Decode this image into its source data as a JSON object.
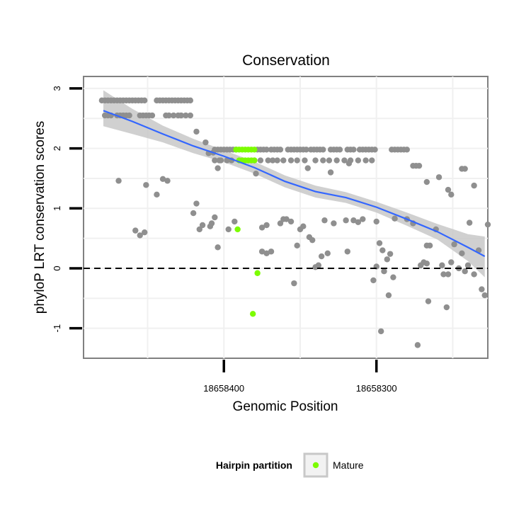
{
  "chart_data": {
    "type": "scatter",
    "title": "Conservation",
    "xlabel": "Genomic Position",
    "ylabel": "phyloP LRT conservation scores",
    "x_reversed": true,
    "xlim": [
      18658492,
      18658227
    ],
    "ylim": [
      -1.5,
      3.2
    ],
    "x_ticks": [
      18658400,
      18658300
    ],
    "x_tick_labels": [
      "18658400",
      "18658300"
    ],
    "y_ticks": [
      3,
      2,
      1,
      0,
      -1
    ],
    "y_tick_labels": [
      "3",
      "2",
      "1",
      "0",
      "-1"
    ],
    "reference_line": {
      "y": 0,
      "style": "dashed"
    },
    "grid": true,
    "legend": {
      "title": "Hairpin partition",
      "position": "bottom",
      "entries": [
        {
          "label": "Mature",
          "color": "#7cfc00"
        }
      ]
    },
    "colors": {
      "other": "#8f8f8f",
      "mature": "#7cfc00",
      "smooth": "#3366ff",
      "band": "#c8c8c8"
    },
    "series": [
      {
        "name": "",
        "color": "#8f8f8f",
        "points": [
          [
            18658480,
            2.8
          ],
          [
            18658478,
            2.8
          ],
          [
            18658476,
            2.8
          ],
          [
            18658474,
            2.8
          ],
          [
            18658472,
            2.8
          ],
          [
            18658470,
            2.8
          ],
          [
            18658468,
            2.8
          ],
          [
            18658466,
            2.8
          ],
          [
            18658464,
            2.8
          ],
          [
            18658462,
            2.8
          ],
          [
            18658460,
            2.8
          ],
          [
            18658458,
            2.8
          ],
          [
            18658456,
            2.8
          ],
          [
            18658454,
            2.8
          ],
          [
            18658452,
            2.8
          ],
          [
            18658478,
            2.55
          ],
          [
            18658476,
            2.55
          ],
          [
            18658474,
            2.55
          ],
          [
            18658470,
            2.55
          ],
          [
            18658468,
            2.55
          ],
          [
            18658466,
            2.55
          ],
          [
            18658464,
            2.55
          ],
          [
            18658462,
            2.55
          ],
          [
            18658455,
            2.55
          ],
          [
            18658453,
            2.55
          ],
          [
            18658451,
            2.55
          ],
          [
            18658449,
            2.55
          ],
          [
            18658447,
            2.55
          ],
          [
            18658444,
            2.8
          ],
          [
            18658442,
            2.8
          ],
          [
            18658440,
            2.8
          ],
          [
            18658438,
            2.8
          ],
          [
            18658436,
            2.8
          ],
          [
            18658434,
            2.8
          ],
          [
            18658432,
            2.8
          ],
          [
            18658430,
            2.8
          ],
          [
            18658428,
            2.8
          ],
          [
            18658426,
            2.8
          ],
          [
            18658424,
            2.8
          ],
          [
            18658422,
            2.8
          ],
          [
            18658438,
            2.55
          ],
          [
            18658436,
            2.55
          ],
          [
            18658433,
            2.55
          ],
          [
            18658430,
            2.55
          ],
          [
            18658428,
            2.55
          ],
          [
            18658425,
            2.55
          ],
          [
            18658422,
            2.55
          ],
          [
            18658418,
            2.28
          ],
          [
            18658412,
            2.1
          ],
          [
            18658410,
            1.92
          ],
          [
            18658407,
            1.93
          ],
          [
            18658406,
            1.98
          ],
          [
            18658404,
            1.98
          ],
          [
            18658402,
            1.98
          ],
          [
            18658400,
            1.98
          ],
          [
            18658398,
            1.98
          ],
          [
            18658396,
            1.98
          ],
          [
            18658394,
            1.98
          ],
          [
            18658392,
            1.98
          ],
          [
            18658378,
            1.98
          ],
          [
            18658376,
            1.98
          ],
          [
            18658374,
            1.98
          ],
          [
            18658372,
            1.98
          ],
          [
            18658369,
            1.98
          ],
          [
            18658367,
            1.98
          ],
          [
            18658365,
            1.98
          ],
          [
            18658363,
            1.98
          ],
          [
            18658358,
            1.98
          ],
          [
            18658356,
            1.98
          ],
          [
            18658354,
            1.98
          ],
          [
            18658352,
            1.98
          ],
          [
            18658350,
            1.98
          ],
          [
            18658348,
            1.98
          ],
          [
            18658346,
            1.98
          ],
          [
            18658343,
            1.98
          ],
          [
            18658341,
            1.98
          ],
          [
            18658339,
            1.98
          ],
          [
            18658337,
            1.98
          ],
          [
            18658335,
            1.98
          ],
          [
            18658330,
            1.98
          ],
          [
            18658328,
            1.98
          ],
          [
            18658326,
            1.98
          ],
          [
            18658324,
            1.98
          ],
          [
            18658319,
            1.98
          ],
          [
            18658317,
            1.98
          ],
          [
            18658315,
            1.98
          ],
          [
            18658311,
            1.98
          ],
          [
            18658309,
            1.98
          ],
          [
            18658307,
            1.98
          ],
          [
            18658305,
            1.98
          ],
          [
            18658303,
            1.98
          ],
          [
            18658301,
            1.98
          ],
          [
            18658290,
            1.98
          ],
          [
            18658288,
            1.98
          ],
          [
            18658286,
            1.98
          ],
          [
            18658284,
            1.98
          ],
          [
            18658282,
            1.98
          ],
          [
            18658280,
            1.98
          ],
          [
            18658406,
            1.8
          ],
          [
            18658402,
            1.8
          ],
          [
            18658398,
            1.8
          ],
          [
            18658395,
            1.8
          ],
          [
            18658380,
            1.8
          ],
          [
            18658376,
            1.8
          ],
          [
            18658371,
            1.8
          ],
          [
            18658368,
            1.8
          ],
          [
            18658365,
            1.8
          ],
          [
            18658361,
            1.8
          ],
          [
            18658356,
            1.8
          ],
          [
            18658352,
            1.8
          ],
          [
            18658347,
            1.8
          ],
          [
            18658340,
            1.8
          ],
          [
            18658335,
            1.8
          ],
          [
            18658331,
            1.8
          ],
          [
            18658326,
            1.8
          ],
          [
            18658321,
            1.8
          ],
          [
            18658317,
            1.8
          ],
          [
            18658312,
            1.8
          ],
          [
            18658307,
            1.8
          ],
          [
            18658303,
            1.8
          ],
          [
            18658404,
            1.67
          ],
          [
            18658403,
            1.8
          ],
          [
            18658379,
            1.58
          ],
          [
            18658345,
            1.67
          ],
          [
            18658330,
            1.6
          ],
          [
            18658318,
            1.75
          ],
          [
            18658276,
            1.71
          ],
          [
            18658274,
            1.71
          ],
          [
            18658272,
            1.71
          ],
          [
            18658469,
            1.46
          ],
          [
            18658440,
            1.49
          ],
          [
            18658437,
            1.46
          ],
          [
            18658451,
            1.39
          ],
          [
            18658444,
            1.23
          ],
          [
            18658267,
            1.44
          ],
          [
            18658259,
            1.52
          ],
          [
            18658253,
            1.31
          ],
          [
            18658251,
            1.23
          ],
          [
            18658244,
            1.66
          ],
          [
            18658242,
            1.66
          ],
          [
            18658236,
            1.38
          ],
          [
            18658420,
            0.92
          ],
          [
            18658418,
            1.08
          ],
          [
            18658416,
            0.65
          ],
          [
            18658414,
            0.72
          ],
          [
            18658409,
            0.7
          ],
          [
            18658408,
            0.75
          ],
          [
            18658406,
            0.85
          ],
          [
            18658404,
            0.35
          ],
          [
            18658397,
            0.65
          ],
          [
            18658393,
            0.78
          ],
          [
            18658458,
            0.63
          ],
          [
            18658455,
            0.55
          ],
          [
            18658452,
            0.6
          ],
          [
            18658375,
            0.68
          ],
          [
            18658372,
            0.72
          ],
          [
            18658375,
            0.28
          ],
          [
            18658372,
            0.25
          ],
          [
            18658369,
            0.28
          ],
          [
            18658363,
            0.75
          ],
          [
            18658361,
            0.82
          ],
          [
            18658359,
            0.82
          ],
          [
            18658356,
            0.78
          ],
          [
            18658354,
            -0.25
          ],
          [
            18658352,
            0.38
          ],
          [
            18658350,
            0.65
          ],
          [
            18658348,
            0.7
          ],
          [
            18658344,
            0.52
          ],
          [
            18658342,
            0.47
          ],
          [
            18658340,
            0.02
          ],
          [
            18658338,
            0.05
          ],
          [
            18658336,
            0.2
          ],
          [
            18658334,
            0.8
          ],
          [
            18658332,
            0.25
          ],
          [
            18658328,
            0.75
          ],
          [
            18658320,
            0.8
          ],
          [
            18658315,
            0.8
          ],
          [
            18658319,
            0.28
          ],
          [
            18658312,
            0.77
          ],
          [
            18658309,
            0.82
          ],
          [
            18658300,
            0.78
          ],
          [
            18658302,
            -0.2
          ],
          [
            18658300,
            0.03
          ],
          [
            18658298,
            0.42
          ],
          [
            18658296,
            0.3
          ],
          [
            18658293,
            0.15
          ],
          [
            18658291,
            0.24
          ],
          [
            18658288,
            0.83
          ],
          [
            18658297,
            -1.05
          ],
          [
            18658295,
            -0.05
          ],
          [
            18658292,
            -0.45
          ],
          [
            18658289,
            -0.15
          ],
          [
            18658280,
            0.82
          ],
          [
            18658276,
            0.75
          ],
          [
            18658273,
            -1.28
          ],
          [
            18658267,
            0.38
          ],
          [
            18658265,
            0.38
          ],
          [
            18658271,
            0.05
          ],
          [
            18658269,
            0.1
          ],
          [
            18658267,
            0.08
          ],
          [
            18658266,
            -0.55
          ],
          [
            18658261,
            0.65
          ],
          [
            18658257,
            0.05
          ],
          [
            18658256,
            -0.1
          ],
          [
            18658254,
            -0.65
          ],
          [
            18658253,
            -0.1
          ],
          [
            18658251,
            0.1
          ],
          [
            18658249,
            0.4
          ],
          [
            18658246,
            0.0
          ],
          [
            18658244,
            0.25
          ],
          [
            18658239,
            0.76
          ],
          [
            18658236,
            -0.1
          ],
          [
            18658233,
            0.3
          ],
          [
            18658231,
            -0.35
          ],
          [
            18658229,
            -0.45
          ],
          [
            18658227,
            0.73
          ],
          [
            18658242,
            -0.05
          ],
          [
            18658240,
            0.05
          ]
        ]
      },
      {
        "name": "Mature",
        "color": "#7cfc00",
        "points": [
          [
            18658392,
            1.98
          ],
          [
            18658390,
            1.98
          ],
          [
            18658388,
            1.98
          ],
          [
            18658386,
            1.98
          ],
          [
            18658384,
            1.98
          ],
          [
            18658382,
            1.98
          ],
          [
            18658380,
            1.98
          ],
          [
            18658390,
            1.8
          ],
          [
            18658388,
            1.8
          ],
          [
            18658386,
            1.8
          ],
          [
            18658384,
            1.8
          ],
          [
            18658382,
            1.8
          ],
          [
            18658380,
            1.8
          ],
          [
            18658391,
            0.65
          ],
          [
            18658378,
            -0.08
          ],
          [
            18658381,
            -0.76
          ]
        ]
      }
    ],
    "smooth": {
      "color": "#3366ff",
      "points": [
        [
          18658479,
          2.63
        ],
        [
          18658460,
          2.45
        ],
        [
          18658440,
          2.24
        ],
        [
          18658420,
          2.04
        ],
        [
          18658400,
          1.87
        ],
        [
          18658380,
          1.68
        ],
        [
          18658360,
          1.45
        ],
        [
          18658340,
          1.28
        ],
        [
          18658320,
          1.18
        ],
        [
          18658300,
          1.02
        ],
        [
          18658280,
          0.82
        ],
        [
          18658260,
          0.61
        ],
        [
          18658240,
          0.35
        ],
        [
          18658229,
          0.2
        ]
      ],
      "band_upper": [
        [
          18658479,
          2.97
        ],
        [
          18658460,
          2.66
        ],
        [
          18658440,
          2.38
        ],
        [
          18658420,
          2.16
        ],
        [
          18658400,
          1.97
        ],
        [
          18658380,
          1.78
        ],
        [
          18658360,
          1.55
        ],
        [
          18658340,
          1.38
        ],
        [
          18658320,
          1.27
        ],
        [
          18658300,
          1.11
        ],
        [
          18658280,
          0.93
        ],
        [
          18658260,
          0.74
        ],
        [
          18658240,
          0.57
        ],
        [
          18658229,
          0.53
        ]
      ],
      "band_lower": [
        [
          18658479,
          2.37
        ],
        [
          18658460,
          2.24
        ],
        [
          18658440,
          2.1
        ],
        [
          18658420,
          1.92
        ],
        [
          18658400,
          1.77
        ],
        [
          18658380,
          1.58
        ],
        [
          18658360,
          1.35
        ],
        [
          18658340,
          1.18
        ],
        [
          18658320,
          1.09
        ],
        [
          18658300,
          0.93
        ],
        [
          18658280,
          0.71
        ],
        [
          18658260,
          0.48
        ],
        [
          18658240,
          0.12
        ],
        [
          18658229,
          -0.15
        ]
      ]
    }
  }
}
